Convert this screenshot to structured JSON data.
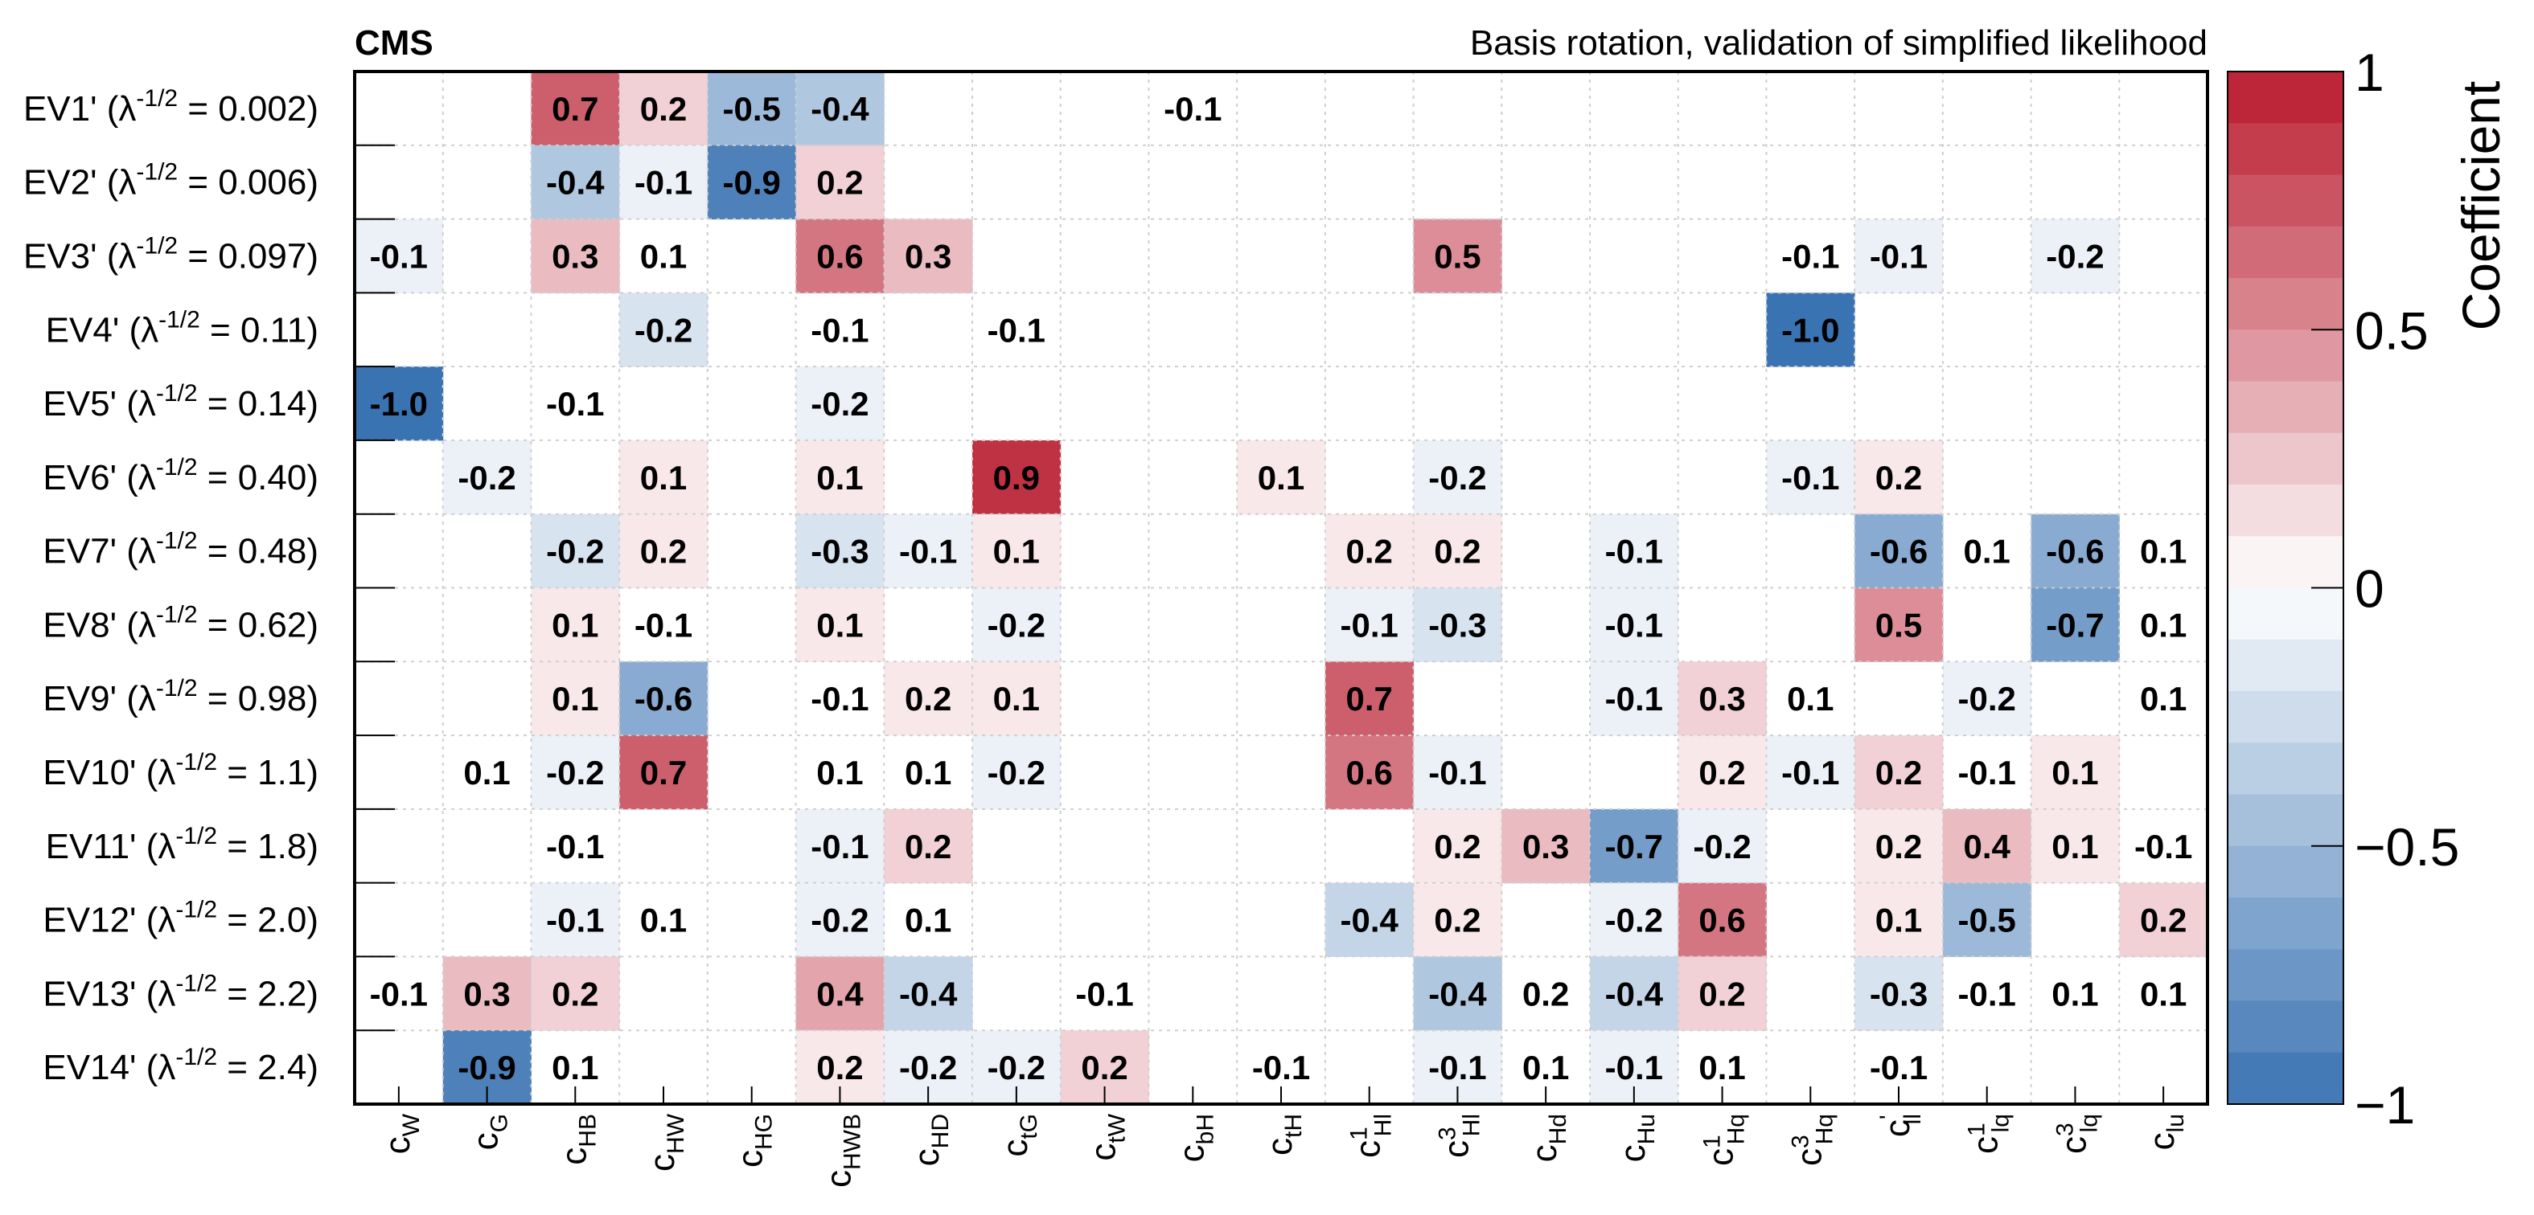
{
  "chart_data": {
    "type": "heatmap",
    "title": "Basis rotation, validation of simplified likelihood",
    "experiment_label": "CMS",
    "colorbar": {
      "label": "Coefficient",
      "range": [
        -1,
        1
      ],
      "tick_labels": [
        "1",
        "0.5",
        "0",
        "−0.5",
        "−1"
      ],
      "tick_values": [
        1,
        0.5,
        0,
        -0.5,
        -1
      ],
      "low_color": "#3a73b2",
      "mid_color": "#ffffff",
      "high_color": "#b81b2e"
    },
    "columns": [
      {
        "base": "c",
        "sub": "W",
        "sup": ""
      },
      {
        "base": "c",
        "sub": "G",
        "sup": ""
      },
      {
        "base": "c",
        "sub": "HB",
        "sup": ""
      },
      {
        "base": "c",
        "sub": "HW",
        "sup": ""
      },
      {
        "base": "c",
        "sub": "HG",
        "sup": ""
      },
      {
        "base": "c",
        "sub": "HWB",
        "sup": ""
      },
      {
        "base": "c",
        "sub": "HD",
        "sup": ""
      },
      {
        "base": "c",
        "sub": "tG",
        "sup": ""
      },
      {
        "base": "c",
        "sub": "tW",
        "sup": ""
      },
      {
        "base": "c",
        "sub": "bH",
        "sup": ""
      },
      {
        "base": "c",
        "sub": "tH",
        "sup": ""
      },
      {
        "base": "c",
        "sub": "Hl",
        "sup": "1"
      },
      {
        "base": "c",
        "sub": "Hl",
        "sup": "3"
      },
      {
        "base": "c",
        "sub": "Hd",
        "sup": ""
      },
      {
        "base": "c",
        "sub": "Hu",
        "sup": ""
      },
      {
        "base": "c",
        "sub": "Hq",
        "sup": "1"
      },
      {
        "base": "c",
        "sub": "Hq",
        "sup": "3"
      },
      {
        "base": "c",
        "sub": "ll",
        "sup": "'"
      },
      {
        "base": "c",
        "sub": "lq",
        "sup": "1"
      },
      {
        "base": "c",
        "sub": "lq",
        "sup": "3"
      },
      {
        "base": "c",
        "sub": "lu",
        "sup": ""
      }
    ],
    "rows": [
      {
        "name": "EV1'",
        "lambda": "0.002"
      },
      {
        "name": "EV2'",
        "lambda": "0.006"
      },
      {
        "name": "EV3'",
        "lambda": "0.097"
      },
      {
        "name": "EV4'",
        "lambda": "0.11"
      },
      {
        "name": "EV5'",
        "lambda": "0.14"
      },
      {
        "name": "EV6'",
        "lambda": "0.40"
      },
      {
        "name": "EV7'",
        "lambda": "0.48"
      },
      {
        "name": "EV8'",
        "lambda": "0.62"
      },
      {
        "name": "EV9'",
        "lambda": "0.98"
      },
      {
        "name": "EV10'",
        "lambda": "1.1"
      },
      {
        "name": "EV11'",
        "lambda": "1.8"
      },
      {
        "name": "EV12'",
        "lambda": "2.0"
      },
      {
        "name": "EV13'",
        "lambda": "2.2"
      },
      {
        "name": "EV14'",
        "lambda": "2.4"
      }
    ],
    "row_label_prefix": "(λ",
    "row_label_exponent": "-1/2",
    "row_label_equals": " = ",
    "row_label_suffix": ")",
    "values": [
      [
        null,
        null,
        0.7,
        0.2,
        -0.5,
        -0.4,
        null,
        null,
        null,
        -0.1,
        null,
        null,
        null,
        null,
        null,
        null,
        null,
        null,
        null,
        null,
        null
      ],
      [
        null,
        null,
        -0.4,
        -0.1,
        -0.9,
        0.2,
        null,
        null,
        null,
        null,
        null,
        null,
        null,
        null,
        null,
        null,
        null,
        null,
        null,
        null,
        null
      ],
      [
        -0.1,
        null,
        0.3,
        0.1,
        null,
        0.6,
        0.3,
        null,
        null,
        null,
        null,
        null,
        0.5,
        null,
        null,
        null,
        -0.1,
        -0.1,
        null,
        -0.2,
        null
      ],
      [
        null,
        null,
        null,
        -0.2,
        null,
        -0.1,
        null,
        -0.1,
        null,
        null,
        null,
        null,
        null,
        null,
        null,
        null,
        -1.0,
        null,
        null,
        null,
        null
      ],
      [
        -1.0,
        null,
        -0.1,
        null,
        null,
        -0.2,
        null,
        null,
        null,
        null,
        null,
        null,
        null,
        null,
        null,
        null,
        null,
        null,
        null,
        null,
        null
      ],
      [
        null,
        -0.2,
        null,
        0.1,
        null,
        0.1,
        null,
        0.9,
        null,
        null,
        0.1,
        null,
        -0.2,
        null,
        null,
        null,
        -0.1,
        0.2,
        null,
        null,
        null
      ],
      [
        null,
        null,
        -0.2,
        0.2,
        null,
        -0.3,
        -0.1,
        0.1,
        null,
        null,
        null,
        0.2,
        0.2,
        null,
        -0.1,
        null,
        null,
        -0.6,
        0.1,
        -0.6,
        0.1
      ],
      [
        null,
        null,
        0.1,
        -0.1,
        null,
        0.1,
        null,
        -0.2,
        null,
        null,
        null,
        -0.1,
        -0.3,
        null,
        -0.1,
        null,
        null,
        0.5,
        null,
        -0.7,
        0.1
      ],
      [
        null,
        null,
        0.1,
        -0.6,
        null,
        -0.1,
        0.2,
        0.1,
        null,
        null,
        null,
        0.7,
        null,
        null,
        -0.1,
        0.3,
        0.1,
        null,
        -0.2,
        null,
        0.1
      ],
      [
        null,
        0.1,
        -0.2,
        0.7,
        null,
        0.1,
        0.1,
        -0.2,
        null,
        null,
        null,
        0.6,
        -0.1,
        null,
        null,
        0.2,
        -0.1,
        0.2,
        -0.1,
        0.1,
        null
      ],
      [
        null,
        null,
        -0.1,
        null,
        null,
        -0.1,
        0.2,
        null,
        null,
        null,
        null,
        null,
        0.2,
        0.3,
        -0.7,
        -0.2,
        null,
        0.2,
        0.4,
        0.1,
        -0.1
      ],
      [
        null,
        null,
        -0.1,
        0.1,
        null,
        -0.2,
        0.1,
        null,
        null,
        null,
        null,
        -0.4,
        0.2,
        null,
        -0.2,
        0.6,
        null,
        0.1,
        -0.5,
        null,
        0.2
      ],
      [
        -0.1,
        0.3,
        0.2,
        null,
        null,
        0.4,
        -0.4,
        null,
        -0.1,
        null,
        null,
        null,
        -0.4,
        0.2,
        -0.4,
        0.2,
        null,
        -0.3,
        -0.1,
        0.1,
        0.1
      ],
      [
        null,
        -0.9,
        0.1,
        null,
        null,
        0.2,
        -0.2,
        -0.2,
        0.2,
        null,
        -0.1,
        null,
        -0.1,
        0.1,
        -0.1,
        0.1,
        null,
        -0.1,
        null,
        null,
        null
      ]
    ],
    "shading_values": [
      [
        null,
        null,
        0.7,
        0.2,
        -0.5,
        -0.4,
        null,
        null,
        null,
        null,
        null,
        null,
        null,
        null,
        null,
        null,
        null,
        null,
        null,
        null,
        null
      ],
      [
        null,
        null,
        -0.4,
        -0.1,
        -0.9,
        0.2,
        null,
        null,
        null,
        null,
        null,
        null,
        null,
        null,
        null,
        null,
        null,
        null,
        null,
        null,
        null
      ],
      [
        -0.1,
        null,
        0.3,
        null,
        null,
        0.6,
        0.3,
        null,
        null,
        null,
        null,
        null,
        0.5,
        null,
        null,
        null,
        null,
        -0.1,
        null,
        -0.1,
        null
      ],
      [
        null,
        null,
        null,
        -0.2,
        null,
        null,
        null,
        null,
        null,
        null,
        null,
        null,
        null,
        null,
        null,
        null,
        -1.0,
        null,
        null,
        null,
        null
      ],
      [
        -1.0,
        null,
        null,
        null,
        null,
        -0.1,
        null,
        null,
        null,
        null,
        null,
        null,
        null,
        null,
        null,
        null,
        null,
        null,
        null,
        null,
        null
      ],
      [
        null,
        -0.1,
        null,
        0.1,
        null,
        0.1,
        null,
        0.9,
        null,
        null,
        0.1,
        null,
        -0.1,
        null,
        null,
        null,
        -0.1,
        0.1,
        null,
        null,
        null
      ],
      [
        null,
        null,
        -0.2,
        0.1,
        null,
        -0.2,
        -0.1,
        0.1,
        null,
        null,
        null,
        0.1,
        0.1,
        null,
        -0.1,
        null,
        null,
        -0.6,
        null,
        -0.6,
        null
      ],
      [
        null,
        null,
        0.1,
        null,
        null,
        0.1,
        null,
        -0.1,
        null,
        null,
        null,
        -0.1,
        -0.2,
        null,
        -0.1,
        null,
        null,
        0.5,
        null,
        -0.7,
        null
      ],
      [
        null,
        null,
        0.1,
        -0.6,
        null,
        null,
        0.1,
        0.1,
        null,
        null,
        null,
        0.7,
        null,
        null,
        -0.1,
        0.2,
        null,
        null,
        -0.1,
        null,
        null
      ],
      [
        null,
        null,
        -0.1,
        0.7,
        null,
        null,
        null,
        -0.1,
        null,
        null,
        null,
        0.6,
        -0.1,
        null,
        null,
        0.1,
        -0.1,
        0.2,
        null,
        0.1,
        null
      ],
      [
        null,
        null,
        null,
        null,
        null,
        -0.1,
        0.2,
        null,
        null,
        null,
        null,
        null,
        0.1,
        0.3,
        -0.7,
        -0.1,
        null,
        0.1,
        0.3,
        0.1,
        null
      ],
      [
        null,
        null,
        -0.1,
        null,
        null,
        -0.1,
        null,
        null,
        null,
        null,
        null,
        -0.3,
        0.1,
        null,
        -0.1,
        0.6,
        null,
        0.1,
        -0.5,
        null,
        0.2
      ],
      [
        null,
        0.3,
        0.2,
        null,
        null,
        0.4,
        -0.3,
        null,
        null,
        null,
        null,
        null,
        -0.4,
        null,
        -0.3,
        0.2,
        null,
        -0.2,
        null,
        null,
        null
      ],
      [
        null,
        -0.9,
        null,
        null,
        null,
        0.1,
        -0.1,
        -0.1,
        0.2,
        null,
        null,
        null,
        -0.1,
        null,
        -0.1,
        null,
        null,
        null,
        null,
        null,
        null
      ]
    ],
    "grid": true,
    "legend": "colorbar-right"
  }
}
